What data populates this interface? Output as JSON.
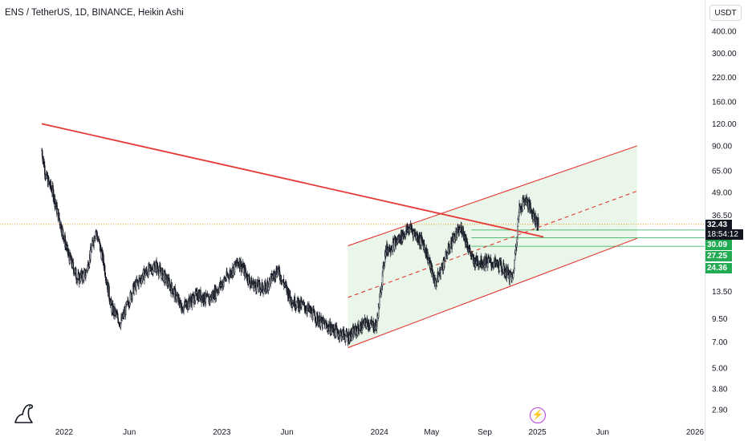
{
  "chart_data": {
    "type": "candlestick",
    "title": "ENS / TetherUS, 1D, BINANCE, Heikin Ashi",
    "y_scale": "log",
    "currency": "USDT",
    "y_ticks": [
      400,
      300,
      220,
      160,
      120,
      90,
      65,
      49,
      36.5,
      13.5,
      9.5,
      7,
      5,
      3.8,
      2.9
    ],
    "y_tick_labels": [
      "400.00",
      "300.00",
      "220.00",
      "160.00",
      "120.00",
      "90.00",
      "65.00",
      "49.00",
      "36.50",
      "13.50",
      "9.50",
      "7.00",
      "5.00",
      "3.80",
      "2.90"
    ],
    "x_ticks": [
      "2022-01-01",
      "2022-06-01",
      "2023-01-01",
      "2023-06-01",
      "2024-01-01",
      "2024-05-01",
      "2024-09-01",
      "2025-01-01",
      "2025-06-01",
      "2026-01-01"
    ],
    "x_tick_labels": [
      "2022",
      "Jun",
      "2023",
      "Jun",
      "2024",
      "May",
      "Sep",
      "2025",
      "Jun",
      "2026"
    ],
    "series": [
      {
        "x": [
          "2021-11-10",
          "2021-11-20",
          "2021-12-05",
          "2021-12-20",
          "2022-01-10",
          "2022-02-01",
          "2022-02-20",
          "2022-03-15",
          "2022-04-02",
          "2022-04-20",
          "2022-05-12",
          "2022-06-10",
          "2022-07-05",
          "2022-08-01",
          "2022-09-01",
          "2022-10-01",
          "2022-11-08",
          "2022-12-01",
          "2023-01-10",
          "2023-02-10",
          "2023-03-10",
          "2023-04-10",
          "2023-05-10",
          "2023-06-12",
          "2023-07-15",
          "2023-08-20",
          "2023-09-25",
          "2023-10-20",
          "2023-11-10",
          "2023-12-01",
          "2023-12-25",
          "2024-01-15",
          "2024-02-10",
          "2024-03-12",
          "2024-04-13",
          "2024-05-10",
          "2024-06-05",
          "2024-06-20",
          "2024-07-10",
          "2024-08-05",
          "2024-09-06",
          "2024-10-05",
          "2024-11-05",
          "2024-11-20",
          "2024-12-05",
          "2024-12-20",
          "2025-01-03"
        ],
        "values": [
          85,
          60,
          50,
          35,
          22,
          16,
          17,
          30,
          20,
          11,
          9,
          14,
          17,
          19,
          15,
          11,
          13,
          12,
          16,
          20,
          15,
          14,
          18,
          12,
          11,
          9,
          8,
          7.5,
          8.2,
          9,
          8.6,
          23,
          26,
          31,
          25,
          15,
          22,
          27,
          31,
          20,
          20,
          19,
          16,
          40,
          45,
          38,
          32.43
        ]
      }
    ],
    "price_labels": [
      "32.43",
      "18:54:12",
      "30.09",
      "27.25",
      "24.36"
    ],
    "current_price": 32.43,
    "horizontal_levels": [
      30.09,
      27.25,
      24.36
    ],
    "trendlines": [
      {
        "color": "#e53935",
        "style": "solid",
        "points": [
          [
            "2021-11-10",
            120
          ],
          [
            "2025-01-15",
            27.5
          ]
        ]
      },
      {
        "color": "#e53935",
        "style": "solid",
        "points": [
          [
            "2023-10-20",
            24.5
          ],
          [
            "2025-08-20",
            90
          ]
        ]
      },
      {
        "color": "#e53935",
        "style": "solid",
        "points": [
          [
            "2023-10-20",
            6.5
          ],
          [
            "2025-08-20",
            27
          ]
        ]
      },
      {
        "color": "#e53935",
        "style": "dashed",
        "points": [
          [
            "2023-10-20",
            12.5
          ],
          [
            "2025-08-20",
            50
          ]
        ]
      }
    ],
    "channel_fill_color": "#e3f4e3",
    "accent_colors": {
      "bearish_line": "#e53935",
      "level_line": "#22ab53",
      "current_price_line": "#f59f00",
      "candles": "#131722"
    }
  },
  "ui": {
    "currency_button": "USDT",
    "logo_icon": "tradingview-dino-icon",
    "flash_icon": "lightning-icon"
  }
}
